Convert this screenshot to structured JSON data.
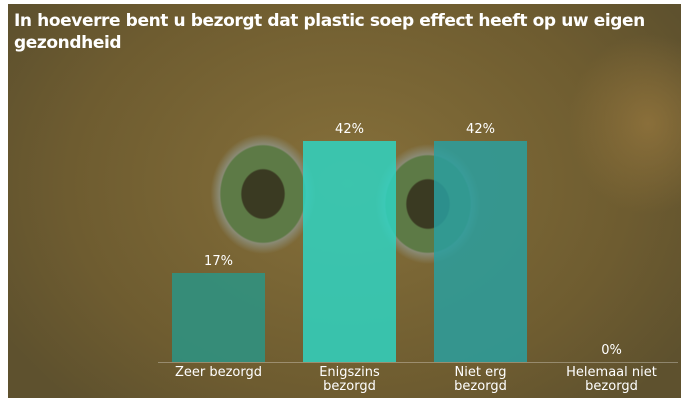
{
  "chart_data": {
    "type": "bar",
    "title": "In hoeverre bent u bezorgt dat plastic soep effect heeft op uw eigen gezondheid",
    "categories": [
      "Zeer bezorgd",
      "Enigszins bezorgd",
      "Niet erg bezorgd",
      "Helemaal niet bezorgd"
    ],
    "values": [
      17,
      42,
      42,
      0
    ],
    "value_labels": [
      "17%",
      "42%",
      "42%",
      "0%"
    ],
    "colors": [
      "#2c9485",
      "#2fd4c2",
      "#2a9f9f",
      "#2a9f9f"
    ]
  }
}
